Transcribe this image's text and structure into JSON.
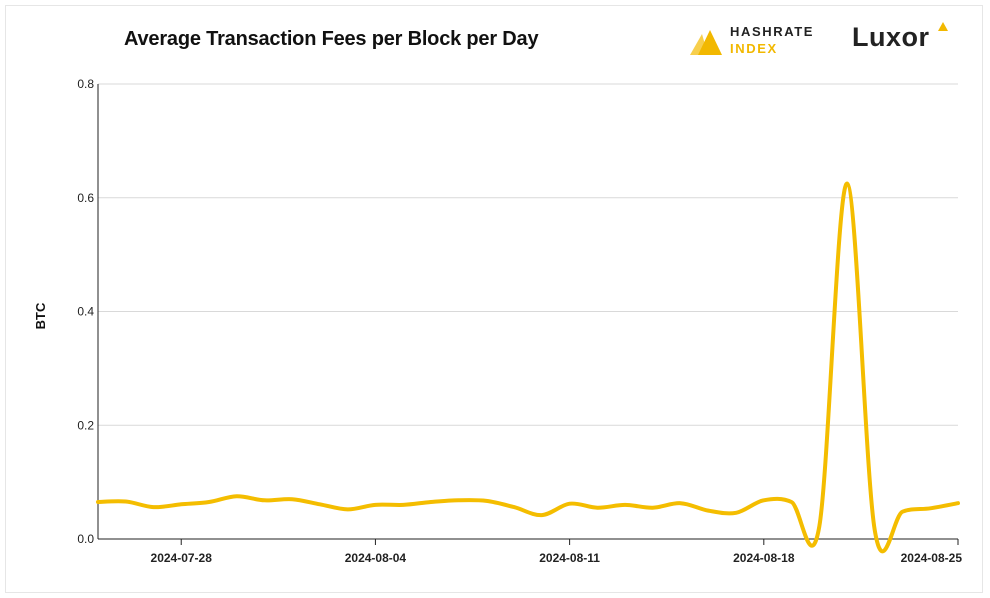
{
  "header": {
    "title": "Average Transaction Fees per Block per Day",
    "logo_hashrate_line1": "HASHRATE",
    "logo_hashrate_line2": "INDEX",
    "logo_luxor": "Luxor"
  },
  "colors": {
    "line": "#f4bd00",
    "grid": "#d9d9d9",
    "axis": "#222222"
  },
  "chart_data": {
    "type": "line",
    "title": "Average Transaction Fees per Block per Day",
    "xlabel": "",
    "ylabel": "BTC",
    "ylim": [
      0,
      0.8
    ],
    "y_ticks": [
      "0.0",
      "0.2",
      "0.4",
      "0.6",
      "0.8"
    ],
    "x_ticks": [
      "2024-07-28",
      "2024-08-04",
      "2024-08-11",
      "2024-08-18",
      "2024-08-25"
    ],
    "xlim": [
      "2024-07-25",
      "2024-08-25"
    ],
    "grid": true,
    "series": [
      {
        "x": [
          "2024-07-25",
          "2024-07-26",
          "2024-07-27",
          "2024-07-28",
          "2024-07-29",
          "2024-07-30",
          "2024-07-31",
          "2024-08-01",
          "2024-08-02",
          "2024-08-03",
          "2024-08-04",
          "2024-08-05",
          "2024-08-06",
          "2024-08-07",
          "2024-08-08",
          "2024-08-09",
          "2024-08-10",
          "2024-08-11",
          "2024-08-12",
          "2024-08-13",
          "2024-08-14",
          "2024-08-15",
          "2024-08-16",
          "2024-08-17",
          "2024-08-18",
          "2024-08-19",
          "2024-08-20",
          "2024-08-21",
          "2024-08-22",
          "2024-08-23",
          "2024-08-24",
          "2024-08-25"
        ],
        "values": [
          0.065,
          0.066,
          0.056,
          0.061,
          0.065,
          0.075,
          0.068,
          0.07,
          0.061,
          0.052,
          0.06,
          0.06,
          0.065,
          0.068,
          0.067,
          0.056,
          0.042,
          0.062,
          0.055,
          0.06,
          0.055,
          0.063,
          0.05,
          0.046,
          0.068,
          0.065,
          0.022,
          0.625,
          0.015,
          0.048,
          0.054,
          0.063
        ]
      }
    ]
  }
}
